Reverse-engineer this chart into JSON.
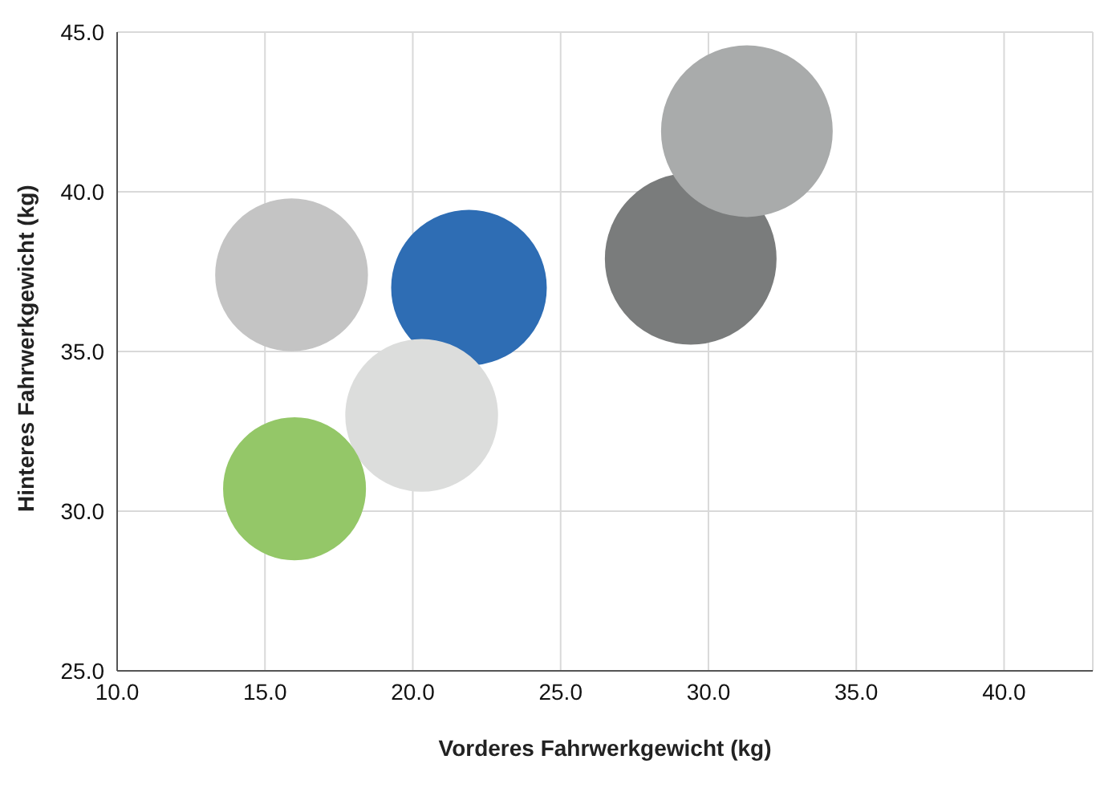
{
  "chart_data": {
    "type": "bubble",
    "xlabel": "Vorderes Fahrwerkgewicht (kg)",
    "ylabel": "Hinteres Fahrwerkgewicht (kg)",
    "x": [
      15.9,
      21.9,
      20.3,
      16.0,
      29.4,
      31.3
    ],
    "values": [
      37.4,
      37.0,
      33.0,
      30.7,
      37.9,
      41.9
    ],
    "sizes": [
      0.79,
      0.82,
      0.79,
      0.69,
      1,
      1
    ],
    "colors": [
      "#c4c4c4",
      "#2e6db4",
      "#dcdddc",
      "#94c768",
      "#7a7c7c",
      "#a9abab"
    ],
    "xlim": [
      10,
      43
    ],
    "xticks": [
      {
        "value": 10,
        "label": "10.0"
      },
      {
        "value": 15,
        "label": "15.0"
      },
      {
        "value": 20,
        "label": "20.0"
      },
      {
        "value": 25,
        "label": "25.0"
      },
      {
        "value": 30,
        "label": "30.0"
      },
      {
        "value": 35,
        "label": "35.0"
      },
      {
        "value": 40,
        "label": "40.0"
      }
    ],
    "ylim": [
      25,
      45
    ],
    "yticks": [
      {
        "value": 25,
        "label": "25.0"
      },
      {
        "value": 30,
        "label": "30.0"
      },
      {
        "value": 35,
        "label": "35.0"
      },
      {
        "value": 40,
        "label": "40.0"
      },
      {
        "value": 45,
        "label": "45.0"
      }
    ],
    "grid": true
  }
}
